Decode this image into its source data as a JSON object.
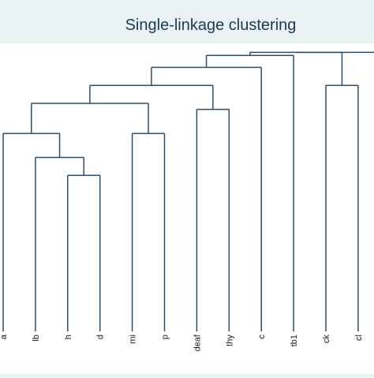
{
  "chart_data": {
    "type": "dendrogram",
    "title": "Single-linkage clustering",
    "leaves": [
      "a",
      "lb",
      "h",
      "d",
      "mi",
      "p",
      "deaf",
      "thy",
      "c",
      "tb1",
      "ck",
      "cl"
    ],
    "merges": [
      {
        "left": "h",
        "right": "d",
        "height": 0.86
      },
      {
        "left": "lb",
        "right": "h+d",
        "height": 0.89
      },
      {
        "left": "a",
        "right": "lb+h+d",
        "height": 0.93
      },
      {
        "left": "mi",
        "right": "p",
        "height": 0.93
      },
      {
        "left": "a+lb+h+d",
        "right": "mi+p",
        "height": 0.98
      },
      {
        "left": "deaf",
        "right": "thy",
        "height": 0.97
      },
      {
        "left": "a..p",
        "right": "deaf+thy",
        "height": 1.01
      },
      {
        "left": "ck",
        "right": "cl",
        "height": 1.01
      },
      {
        "left": "a..thy",
        "right": "c",
        "height": 1.04
      },
      {
        "left": "a..c",
        "right": "tb1",
        "height": 1.06
      },
      {
        "left": "a..tb1",
        "right": "ck+cl",
        "height": 1.065
      }
    ],
    "grid": false,
    "legend": "none",
    "colors": {
      "line": "#2d4e6e",
      "background": "#eaf2f3",
      "plot_background": "#ffffff",
      "title": "#1a3a5c"
    }
  }
}
